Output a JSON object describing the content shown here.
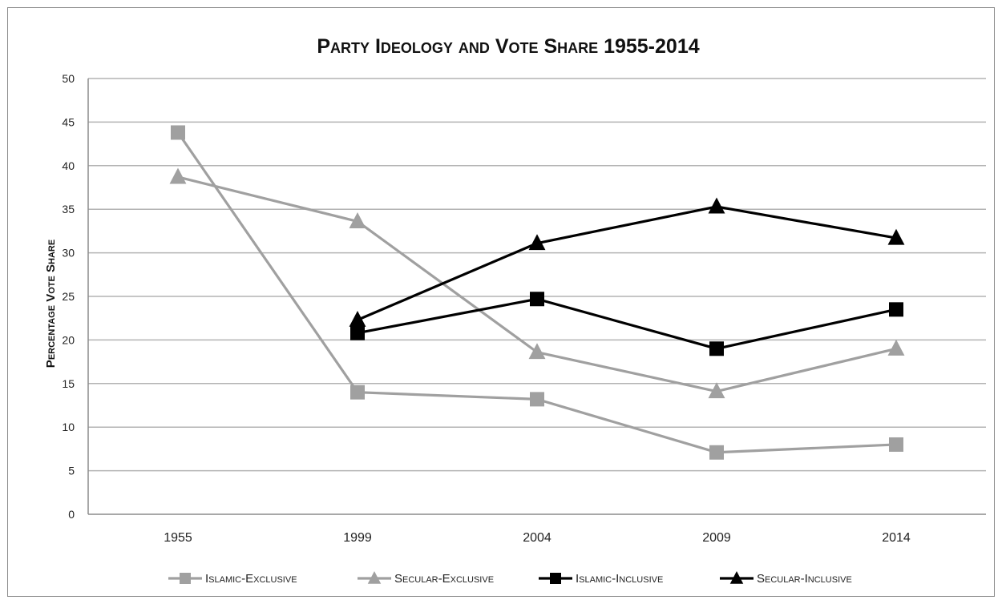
{
  "chart_data": {
    "type": "line",
    "title": "Party Ideology and Vote Share 1955-2014",
    "ylabel": "Percentage Vote Share",
    "xlabel": "",
    "categories": [
      "1955",
      "1999",
      "2004",
      "2009",
      "2014"
    ],
    "ylim": [
      0,
      50
    ],
    "yticks": [
      0,
      5,
      10,
      15,
      20,
      25,
      30,
      35,
      40,
      45,
      50
    ],
    "grid": true,
    "legend_position": "bottom",
    "series": [
      {
        "name": "Islamic-Exclusive",
        "values": [
          43.8,
          14.0,
          13.2,
          7.1,
          8.0
        ],
        "color": "#a0a0a0",
        "marker": "square"
      },
      {
        "name": "Secular-Exclusive",
        "values": [
          38.7,
          33.6,
          18.6,
          14.1,
          19.0
        ],
        "color": "#a0a0a0",
        "marker": "triangle"
      },
      {
        "name": "Islamic-Inclusive",
        "values": [
          null,
          20.8,
          24.7,
          19.0,
          23.5
        ],
        "color": "#000000",
        "marker": "square"
      },
      {
        "name": "Secular-Inclusive",
        "values": [
          null,
          22.3,
          31.1,
          35.3,
          31.7
        ],
        "color": "#000000",
        "marker": "triangle"
      }
    ]
  }
}
